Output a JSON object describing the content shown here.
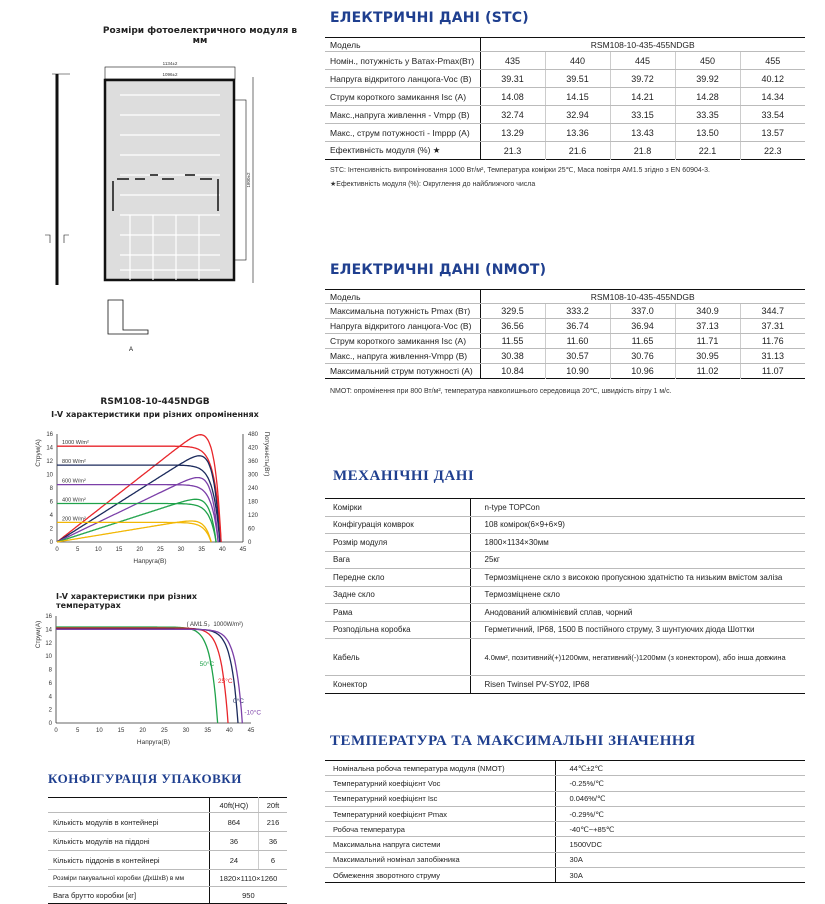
{
  "drawing": {
    "title": "Розміри фотоелектричного модуля в мм",
    "dim_width_outer": "1134±2",
    "dim_width_inner": "1096±2",
    "dim_height": "1800±2",
    "section_label": "A"
  },
  "stc": {
    "heading": "ЕЛЕКТРИЧНІ ДАНІ (STC)",
    "model_label": "Модель",
    "model_value": "RSM108-10-435-455NDGB",
    "rows": [
      {
        "label": "Номін., потужність у Ватах-Pmax(Вт)",
        "values": [
          "435",
          "440",
          "445",
          "450",
          "455"
        ]
      },
      {
        "label": "Напруга відкритого ланцюга-Voc (В)",
        "values": [
          "39.31",
          "39.51",
          "39.72",
          "39.92",
          "40.12"
        ]
      },
      {
        "label": "Струм короткого замикання Isc (A)",
        "values": [
          "14.08",
          "14.15",
          "14.21",
          "14.28",
          "14.34"
        ]
      },
      {
        "label": "Макс.,напруга живлення - Vmpp (В)",
        "values": [
          "32.74",
          "32.94",
          "33.15",
          "33.35",
          "33.54"
        ]
      },
      {
        "label": "Макс., струм потужності - Imppp (A)",
        "values": [
          "13.29",
          "13.36",
          "13.43",
          "13.50",
          "13.57"
        ]
      },
      {
        "label": "Ефективність модуля (%) ★",
        "values": [
          "21.3",
          "21.6",
          "21.8",
          "22.1",
          "22.3"
        ]
      }
    ],
    "note1": "STC: Інтенсивність випромінювання 1000 Вт/м², Температура комірки 25℃, Маса повітря AM1.5 згідно з EN 60904-3.",
    "note2": "★Ефективність модуля (%): Округлення до найближчого числа"
  },
  "nmot": {
    "heading": "ЕЛЕКТРИЧНІ ДАНІ (NMOT)",
    "model_label": "Модель",
    "model_value": "RSM108-10-435-455NDGB",
    "rows": [
      {
        "label": "Максимальна потужність Pmax (Вт)",
        "values": [
          "329.5",
          "333.2",
          "337.0",
          "340.9",
          "344.7"
        ]
      },
      {
        "label": "Напруга відкритого ланцюга-Voc (В)",
        "values": [
          "36.56",
          "36.74",
          "36.94",
          "37.13",
          "37.31"
        ]
      },
      {
        "label": "Струм короткого замикання Isc (A)",
        "values": [
          "11.55",
          "11.60",
          "11.65",
          "11.71",
          "11.76"
        ]
      },
      {
        "label": "Макс., напруга живлення-Vmpp (В)",
        "values": [
          "30.38",
          "30.57",
          "30.76",
          "30.95",
          "31.13"
        ]
      },
      {
        "label": "Максимальний струм потужності (A)",
        "values": [
          "10.84",
          "10.90",
          "10.96",
          "11.02",
          "11.07"
        ]
      }
    ],
    "note": "NMOT: опромінення при 800 Вт/м², температура навколишнього середовища 20℃, швидкість вітру 1 м/с."
  },
  "mech": {
    "heading": "МЕХАНІЧНІ ДАНІ",
    "rows": [
      {
        "label": "Комірки",
        "value": "n-type TOPCon"
      },
      {
        "label": "Конфігурація комврок",
        "value": "108 комірок(6×9+6×9)"
      },
      {
        "label": "Розмір модуля",
        "value": "1800×1134×30мм"
      },
      {
        "label": "Вага",
        "value": "25кг"
      },
      {
        "label": "Передне скло",
        "value": "Термозміцнене скло з високою пропускною здатністю та низьким вмістом заліза"
      },
      {
        "label": "Задне скло",
        "value": "Термозміцнене скло"
      },
      {
        "label": "Рама",
        "value": "Анодований алюмінієвий сплав, чорний"
      },
      {
        "label": "Розподільна коробка",
        "value": "Герметичний, IP68, 1500 В постійного струму, 3 шунтуючих діода Шоттки"
      },
      {
        "label": "Кабель",
        "value": "4.0мм², позитивний(+)1200мм, негативний(-)1200мм (з конектором), або інша довжина"
      },
      {
        "label": "Конектор",
        "value": "Risen Twinsel PV-SY02, IP68"
      }
    ]
  },
  "temp": {
    "heading": "ТЕМПЕРАТУРА ТА МАКСИМАЛЬНІ ЗНАЧЕННЯ",
    "rows": [
      {
        "label": "Номінальна робоча температура модуля (NMOT)",
        "value": "44℃±2℃"
      },
      {
        "label": "Температурний коефіцієнт Voc",
        "value": "-0.25%/℃"
      },
      {
        "label": "Температурний коефіцієнт Isc",
        "value": "0.046%/℃"
      },
      {
        "label": "Температурний коефіцієнт Pmax",
        "value": "-0.29%/℃"
      },
      {
        "label": "Робоча температура",
        "value": "-40℃~+85℃"
      },
      {
        "label": "Максимальна напруга системи",
        "value": "1500VDC"
      },
      {
        "label": "Максимальний номінал запобіжника",
        "value": "30A"
      },
      {
        "label": "Обмеження зворотного струму",
        "value": "30A"
      }
    ]
  },
  "packing": {
    "heading": "КОНФІГУРАЦІЯ УПАКОВКИ",
    "columns": [
      "",
      "40ft(HQ)",
      "20ft"
    ],
    "rows": [
      {
        "label": "Кількість модулів в контейнері",
        "values": [
          "864",
          "216"
        ]
      },
      {
        "label": "Кількість модулів на піддоні",
        "values": [
          "36",
          "36"
        ]
      },
      {
        "label": "Кількість піддонів в контейнері",
        "values": [
          "24",
          "6"
        ]
      }
    ],
    "box_size_label": "Розміри пакувальної коробки (ДxШxВ) в мм",
    "box_size_value": "1820×1110×1260",
    "gross_weight_label": "Вага брутто коробки [кг]",
    "gross_weight_value": "950"
  },
  "chart_data": [
    {
      "type": "line",
      "title": "RSM108-10-445NDGB",
      "subtitle": "I-V характеристики при різних опроміненнях",
      "xlabel": "Напруга(В)",
      "ylabel": "Струм(А)",
      "y2label": "Потужність(Вт)",
      "xlim": [
        0,
        45
      ],
      "ylim": [
        0,
        16
      ],
      "y2lim": [
        0,
        480
      ],
      "xticks": [
        "0",
        "5",
        "10",
        "15",
        "20",
        "25",
        "30",
        "35",
        "40",
        "45"
      ],
      "yticks": [
        "0",
        "2",
        "4",
        "6",
        "8",
        "10",
        "12",
        "14",
        "16"
      ],
      "y2ticks": [
        "0",
        "60",
        "120",
        "180",
        "240",
        "300",
        "360",
        "420",
        "480"
      ],
      "grid": false,
      "series": [
        {
          "name": "1000 W/m²",
          "color": "#e8262b",
          "isc": 14.2,
          "voc": 39.7,
          "pmax": 445
        },
        {
          "name": "800 W/m²",
          "color": "#1b2a5c",
          "isc": 11.4,
          "voc": 39.4,
          "pmax": 358
        },
        {
          "name": "600 W/m²",
          "color": "#7b3fa8",
          "isc": 8.5,
          "voc": 39.0,
          "pmax": 268
        },
        {
          "name": "400 W/m²",
          "color": "#1fa24a",
          "isc": 5.7,
          "voc": 38.5,
          "pmax": 178
        },
        {
          "name": "200 W/m²",
          "color": "#f2b705",
          "isc": 2.9,
          "voc": 37.3,
          "pmax": 88
        }
      ]
    },
    {
      "type": "line",
      "title": "I-V характеристики при різних температурах",
      "annotation": "( AM1.5，1000W/m²)",
      "xlabel": "Напруга(В)",
      "ylabel": "Струм(А)",
      "xlim": [
        0,
        45
      ],
      "ylim": [
        0,
        16
      ],
      "xticks": [
        "0",
        "5",
        "10",
        "15",
        "20",
        "25",
        "30",
        "35",
        "40",
        "45"
      ],
      "yticks": [
        "0",
        "2",
        "4",
        "6",
        "8",
        "10",
        "12",
        "14",
        "16"
      ],
      "grid": false,
      "series": [
        {
          "name": "50°C",
          "color": "#1fa24a",
          "isc": 14.35,
          "voc": 37.3
        },
        {
          "name": "25°C",
          "color": "#e8262b",
          "isc": 14.2,
          "voc": 39.7
        },
        {
          "name": "0°C",
          "color": "#1b2a5c",
          "isc": 14.05,
          "voc": 42.0
        },
        {
          "name": "-10°C",
          "color": "#7b3fa8",
          "isc": 14.0,
          "voc": 43.0
        }
      ]
    }
  ]
}
